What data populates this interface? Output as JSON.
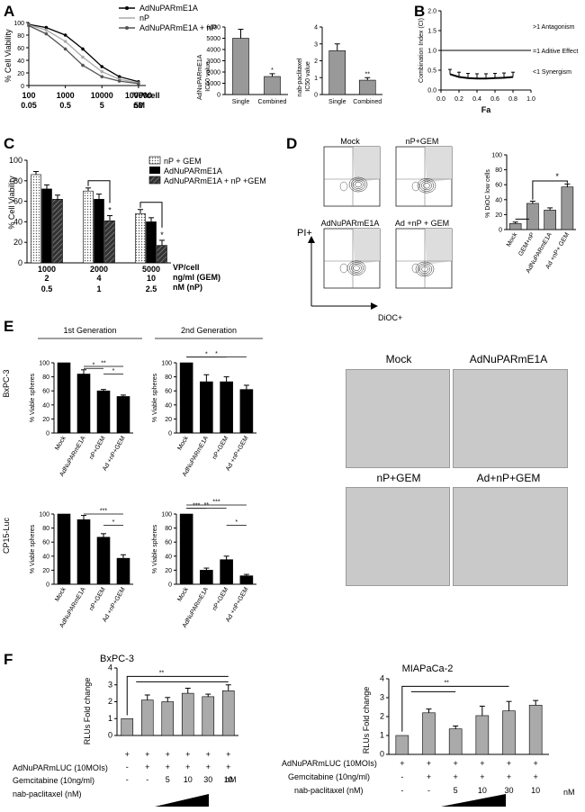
{
  "panels": {
    "A": {
      "label": "A",
      "legend": [
        "AdNuPARmE1A",
        "nP",
        "AdNuPARmE1A + nP"
      ],
      "ylabel": "% Cell Viability",
      "yticks": [
        "0",
        "20",
        "40",
        "60",
        "80",
        "100"
      ],
      "xticks_vp": [
        "100",
        "1000",
        "10000",
        "100000"
      ],
      "xticks_nm": [
        "0.05",
        "0.5",
        "5",
        "50"
      ],
      "xunit_vp": "VP/cell",
      "xunit_nm": "nM",
      "bar1": {
        "ylabel": "AdNuPARmE1A IC50 value",
        "yticks": [
          "0",
          "1000",
          "2000",
          "3000",
          "4000",
          "5000",
          "6000"
        ],
        "categories": [
          "Single",
          "Combined"
        ],
        "annot": [
          "",
          "*"
        ]
      },
      "bar2": {
        "ylabel": "nab-paclitaxel IC50 value",
        "yticks": [
          "0",
          "1",
          "2",
          "3",
          "4"
        ],
        "categories": [
          "Single",
          "Combined"
        ],
        "annot": [
          "",
          "**"
        ]
      }
    },
    "B": {
      "label": "B",
      "ylabel": "Combination Index (CI)",
      "xlabel": "Fa",
      "yticks": [
        "0.0",
        "0.5",
        "1.0",
        "1.5",
        "2.0"
      ],
      "xticks": [
        "0.0",
        "0.2",
        "0.4",
        "0.6",
        "0.8",
        "1.0"
      ],
      "notes": [
        ">1  Antagonism",
        "=1  Aditive Effect",
        "<1  Synergism"
      ]
    },
    "C": {
      "label": "C",
      "legend": [
        "nP + GEM",
        "AdNuPARmE1A",
        "AdNuPARmE1A + nP +GEM"
      ],
      "ylabel": "% Cell Viability",
      "yticks": [
        "0",
        "20",
        "40",
        "60",
        "80",
        "100"
      ],
      "row1": [
        "1000",
        "2000",
        "5000"
      ],
      "row2": [
        "2",
        "4",
        "10"
      ],
      "row3": [
        "0.5",
        "1",
        "2.5"
      ],
      "unit1": "VP/cell",
      "unit2": "ng/ml (GEM)",
      "unit3": "nM (nP)",
      "annot": "*"
    },
    "D": {
      "label": "D",
      "plots": [
        "Mock",
        "nP+GEM",
        "AdNuPARmE1A",
        "Ad +nP + GEM"
      ],
      "yaxis": "PI+",
      "xaxis": "DiOC+",
      "bar": {
        "ylabel": "% DiOC low cells",
        "yticks": [
          "0",
          "20",
          "40",
          "60",
          "80",
          "100"
        ],
        "categories": [
          "Mock",
          "GEM+nP",
          "AdNuPARmE1A",
          "Ad +nP+ GEM"
        ],
        "annot": "*"
      }
    },
    "E": {
      "label": "E",
      "gen1": "1st Generation",
      "gen2": "2nd Generation",
      "row1": "BxPC-3",
      "row2": "CP15-Luc",
      "ylabel": "% Viable spheres",
      "yticks": [
        "0",
        "20",
        "40",
        "60",
        "80",
        "100"
      ],
      "categories": [
        "Mock",
        "AdNuPARmE1A",
        "nP+GEM",
        "Ad +nP+GEM"
      ],
      "micro": [
        "Mock",
        "AdNuPARmE1A",
        "nP+GEM",
        "Ad+nP+GEM"
      ]
    },
    "F": {
      "label": "F",
      "left_title": "BxPC-3",
      "right_title": "MIAPaCa-2",
      "ylabel": "RLUs Fold change",
      "yticks_left": [
        "0",
        "1",
        "2",
        "3",
        "4"
      ],
      "yticks_right": [
        "0",
        "1",
        "2",
        "3",
        "4"
      ],
      "row_labels_left": [
        "AdNuPARmLUC (10MOIs)",
        "Gemcitabine (10ng/ml)",
        "nab-paclitaxel (nM)"
      ],
      "row_labels_right": [
        "AdNuPARmLUC (10MOIs)",
        "Gemcitabine (10ng/ml)",
        "nab-paclitaxel (nM)"
      ],
      "luc": [
        "+",
        "+",
        "+",
        "+",
        "+",
        "+"
      ],
      "gem": [
        "-",
        "+",
        "+",
        "+",
        "+",
        "+"
      ],
      "nab": [
        "-",
        "-",
        "5",
        "10",
        "30",
        "10"
      ],
      "luc_r": [
        "+",
        "+",
        "+",
        "+",
        "+",
        "+"
      ],
      "gem_r": [
        "-",
        "+",
        "+",
        "+",
        "+",
        "+"
      ],
      "nab_r": [
        "-",
        "-",
        "5",
        "10",
        "30",
        "10"
      ],
      "nm_unit": "nM",
      "annot": "**"
    }
  },
  "chart_data": [
    {
      "id": "A-curve",
      "type": "line",
      "xlabel": "VP/cell",
      "ylabel": "% Cell Viability",
      "ylim": [
        0,
        100
      ],
      "xscale": "log",
      "series": [
        {
          "name": "AdNuPARmE1A",
          "x": [
            100,
            300,
            1000,
            3000,
            10000,
            30000,
            100000
          ],
          "values": [
            97,
            92,
            80,
            58,
            30,
            14,
            6
          ]
        },
        {
          "name": "nP",
          "x": [
            100,
            300,
            1000,
            3000,
            10000,
            30000,
            100000
          ],
          "values": [
            96,
            88,
            70,
            45,
            22,
            10,
            4
          ]
        },
        {
          "name": "AdNuPARmE1A + nP",
          "x": [
            100,
            300,
            1000,
            3000,
            10000,
            30000,
            100000
          ],
          "values": [
            95,
            82,
            58,
            32,
            14,
            7,
            3
          ]
        }
      ]
    },
    {
      "id": "A-bar1",
      "type": "bar",
      "categories": [
        "Single",
        "Combined"
      ],
      "values": [
        5000,
        1600
      ],
      "errors": [
        800,
        250
      ],
      "ylim": [
        0,
        6000
      ],
      "ylabel": "AdNuPARmE1A IC50 value"
    },
    {
      "id": "A-bar2",
      "type": "bar",
      "categories": [
        "Single",
        "Combined"
      ],
      "values": [
        2.6,
        0.85
      ],
      "errors": [
        0.4,
        0.15
      ],
      "ylim": [
        0,
        4
      ],
      "ylabel": "nab-paclitaxel IC50 value"
    },
    {
      "id": "B",
      "type": "line",
      "xlabel": "Fa",
      "ylabel": "Combination Index (CI)",
      "ylim": [
        0,
        2
      ],
      "x": [
        0.1,
        0.2,
        0.3,
        0.4,
        0.5,
        0.6,
        0.7,
        0.8
      ],
      "values": [
        0.4,
        0.33,
        0.3,
        0.29,
        0.29,
        0.3,
        0.31,
        0.33
      ]
    },
    {
      "id": "C",
      "type": "bar",
      "ylabel": "% Cell Viability",
      "ylim": [
        0,
        100
      ],
      "categories": [
        "1000",
        "2000",
        "5000"
      ],
      "series": [
        {
          "name": "nP + GEM",
          "values": [
            86,
            70,
            48
          ],
          "errors": [
            3,
            3,
            4
          ]
        },
        {
          "name": "AdNuPARmE1A",
          "values": [
            72,
            62,
            40
          ],
          "errors": [
            4,
            5,
            4
          ]
        },
        {
          "name": "AdNuPARmE1A + nP +GEM",
          "values": [
            62,
            41,
            17
          ],
          "errors": [
            4,
            5,
            5
          ]
        }
      ]
    },
    {
      "id": "D-bar",
      "type": "bar",
      "ylabel": "% DiOC low cells",
      "ylim": [
        0,
        100
      ],
      "categories": [
        "Mock",
        "GEM+nP",
        "AdNuPARmE1A",
        "Ad +nP+ GEM"
      ],
      "values": [
        8,
        35,
        26,
        57
      ],
      "errors": [
        2,
        3,
        3,
        4
      ]
    },
    {
      "id": "E-BxPC3-1st",
      "type": "bar",
      "ylim": [
        0,
        100
      ],
      "categories": [
        "Mock",
        "AdNuPARmE1A",
        "nP+GEM",
        "Ad +nP+GEM"
      ],
      "values": [
        100,
        84,
        60,
        52
      ],
      "errors": [
        0,
        6,
        2,
        2
      ]
    },
    {
      "id": "E-BxPC3-2nd",
      "type": "bar",
      "ylim": [
        0,
        100
      ],
      "categories": [
        "Mock",
        "AdNuPARmE1A",
        "nP+GEM",
        "Ad +nP+GEM"
      ],
      "values": [
        100,
        73,
        73,
        62
      ],
      "errors": [
        0,
        10,
        7,
        6
      ]
    },
    {
      "id": "E-CP15-1st",
      "type": "bar",
      "ylim": [
        0,
        100
      ],
      "categories": [
        "Mock",
        "AdNuPARmE1A",
        "nP+GEM",
        "Ad +nP+GEM"
      ],
      "values": [
        100,
        92,
        67,
        37
      ],
      "errors": [
        0,
        6,
        5,
        5
      ]
    },
    {
      "id": "E-CP15-2nd",
      "type": "bar",
      "ylim": [
        0,
        100
      ],
      "categories": [
        "Mock",
        "AdNuPARmE1A",
        "nP+GEM",
        "Ad +nP+GEM"
      ],
      "values": [
        100,
        20,
        35,
        12
      ],
      "errors": [
        0,
        3,
        5,
        2
      ]
    },
    {
      "id": "F-BxPC3",
      "type": "bar",
      "ylabel": "RLUs Fold change",
      "ylim": [
        0,
        4
      ],
      "categories": [
        "1",
        "2",
        "3",
        "4",
        "5",
        "6"
      ],
      "values": [
        1.0,
        2.1,
        2.0,
        2.5,
        2.3,
        2.65
      ],
      "errors": [
        0,
        0.3,
        0.25,
        0.3,
        0.15,
        0.35
      ]
    },
    {
      "id": "F-MIAPaCa2",
      "type": "bar",
      "ylabel": "RLUs Fold change",
      "ylim": [
        0,
        4
      ],
      "categories": [
        "1",
        "2",
        "3",
        "4",
        "5",
        "6"
      ],
      "values": [
        1.0,
        2.2,
        1.35,
        2.05,
        2.3,
        2.6
      ],
      "errors": [
        0,
        0.2,
        0.15,
        0.5,
        0.5,
        0.25
      ]
    }
  ]
}
